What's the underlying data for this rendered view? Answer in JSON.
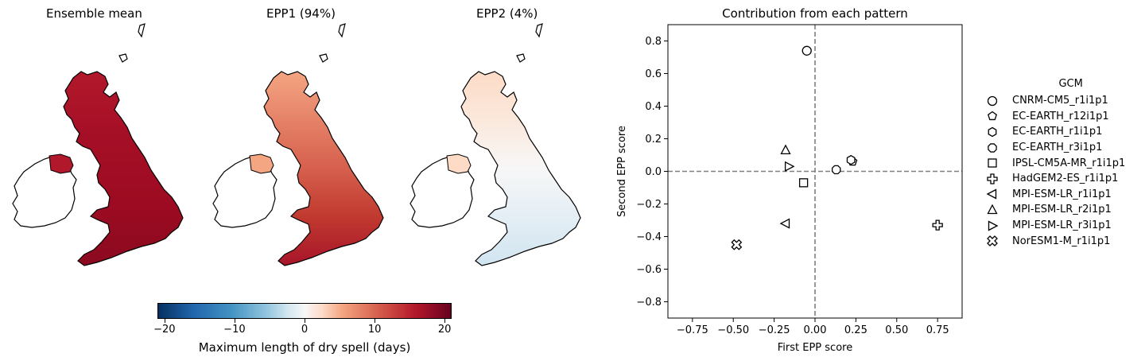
{
  "maps": [
    {
      "title": "Ensemble mean",
      "palette": "ensemble"
    },
    {
      "title": "EPP1 (94%)",
      "palette": "epp1"
    },
    {
      "title": "EPP2 (4%)",
      "palette": "epp2"
    }
  ],
  "colorbar": {
    "label": "Maximum length of dry spell (days)",
    "ticks": [
      "−20",
      "−10",
      "0",
      "10",
      "20"
    ],
    "tick_values": [
      -20,
      -10,
      0,
      10,
      20
    ],
    "range": [
      -21,
      21
    ],
    "colormap": "RdBu_r"
  },
  "chart_data": {
    "type": "scatter",
    "title": "Contribution from each pattern",
    "xlabel": "First EPP score",
    "ylabel": "Second EPP score",
    "xlim": [
      -0.9,
      0.9
    ],
    "ylim": [
      -0.9,
      0.9
    ],
    "xticks": [
      -0.75,
      -0.5,
      -0.25,
      0.0,
      0.25,
      0.5,
      0.75
    ],
    "xtick_labels": [
      "−0.75",
      "−0.50",
      "−0.25",
      "0.00",
      "0.25",
      "0.50",
      "0.75"
    ],
    "yticks": [
      -0.8,
      -0.6,
      -0.4,
      -0.2,
      0.0,
      0.2,
      0.4,
      0.6,
      0.8
    ],
    "ytick_labels": [
      "−0.8",
      "−0.6",
      "−0.4",
      "−0.2",
      "0.0",
      "0.2",
      "0.4",
      "0.6",
      "0.8"
    ],
    "reference_lines": {
      "x": 0,
      "y": 0,
      "style": "dashed",
      "color": "#808080"
    },
    "legend_title": "GCM",
    "legend_position": "outside right",
    "series": [
      {
        "name": "CNRM-CM5_r1i1p1",
        "marker": "circle",
        "x": -0.05,
        "y": 0.74
      },
      {
        "name": "EC-EARTH_r12i1p1",
        "marker": "pentagon",
        "x": 0.23,
        "y": 0.06
      },
      {
        "name": "EC-EARTH_r1i1p1",
        "marker": "hexagon",
        "x": 0.22,
        "y": 0.07
      },
      {
        "name": "EC-EARTH_r3i1p1",
        "marker": "octagon",
        "x": 0.13,
        "y": 0.01
      },
      {
        "name": "IPSL-CM5A-MR_r1i1p1",
        "marker": "square",
        "x": -0.07,
        "y": -0.07
      },
      {
        "name": "HadGEM2-ES_r1i1p1",
        "marker": "plus",
        "x": 0.75,
        "y": -0.33
      },
      {
        "name": "MPI-ESM-LR_r1i1p1",
        "marker": "triangle-left",
        "x": -0.18,
        "y": -0.32
      },
      {
        "name": "MPI-ESM-LR_r2i1p1",
        "marker": "triangle-up",
        "x": -0.18,
        "y": 0.13
      },
      {
        "name": "MPI-ESM-LR_r3i1p1",
        "marker": "triangle-right",
        "x": -0.16,
        "y": 0.03
      },
      {
        "name": "NorESM1-M_r1i1p1",
        "marker": "x-filled",
        "x": -0.48,
        "y": -0.45
      }
    ]
  }
}
